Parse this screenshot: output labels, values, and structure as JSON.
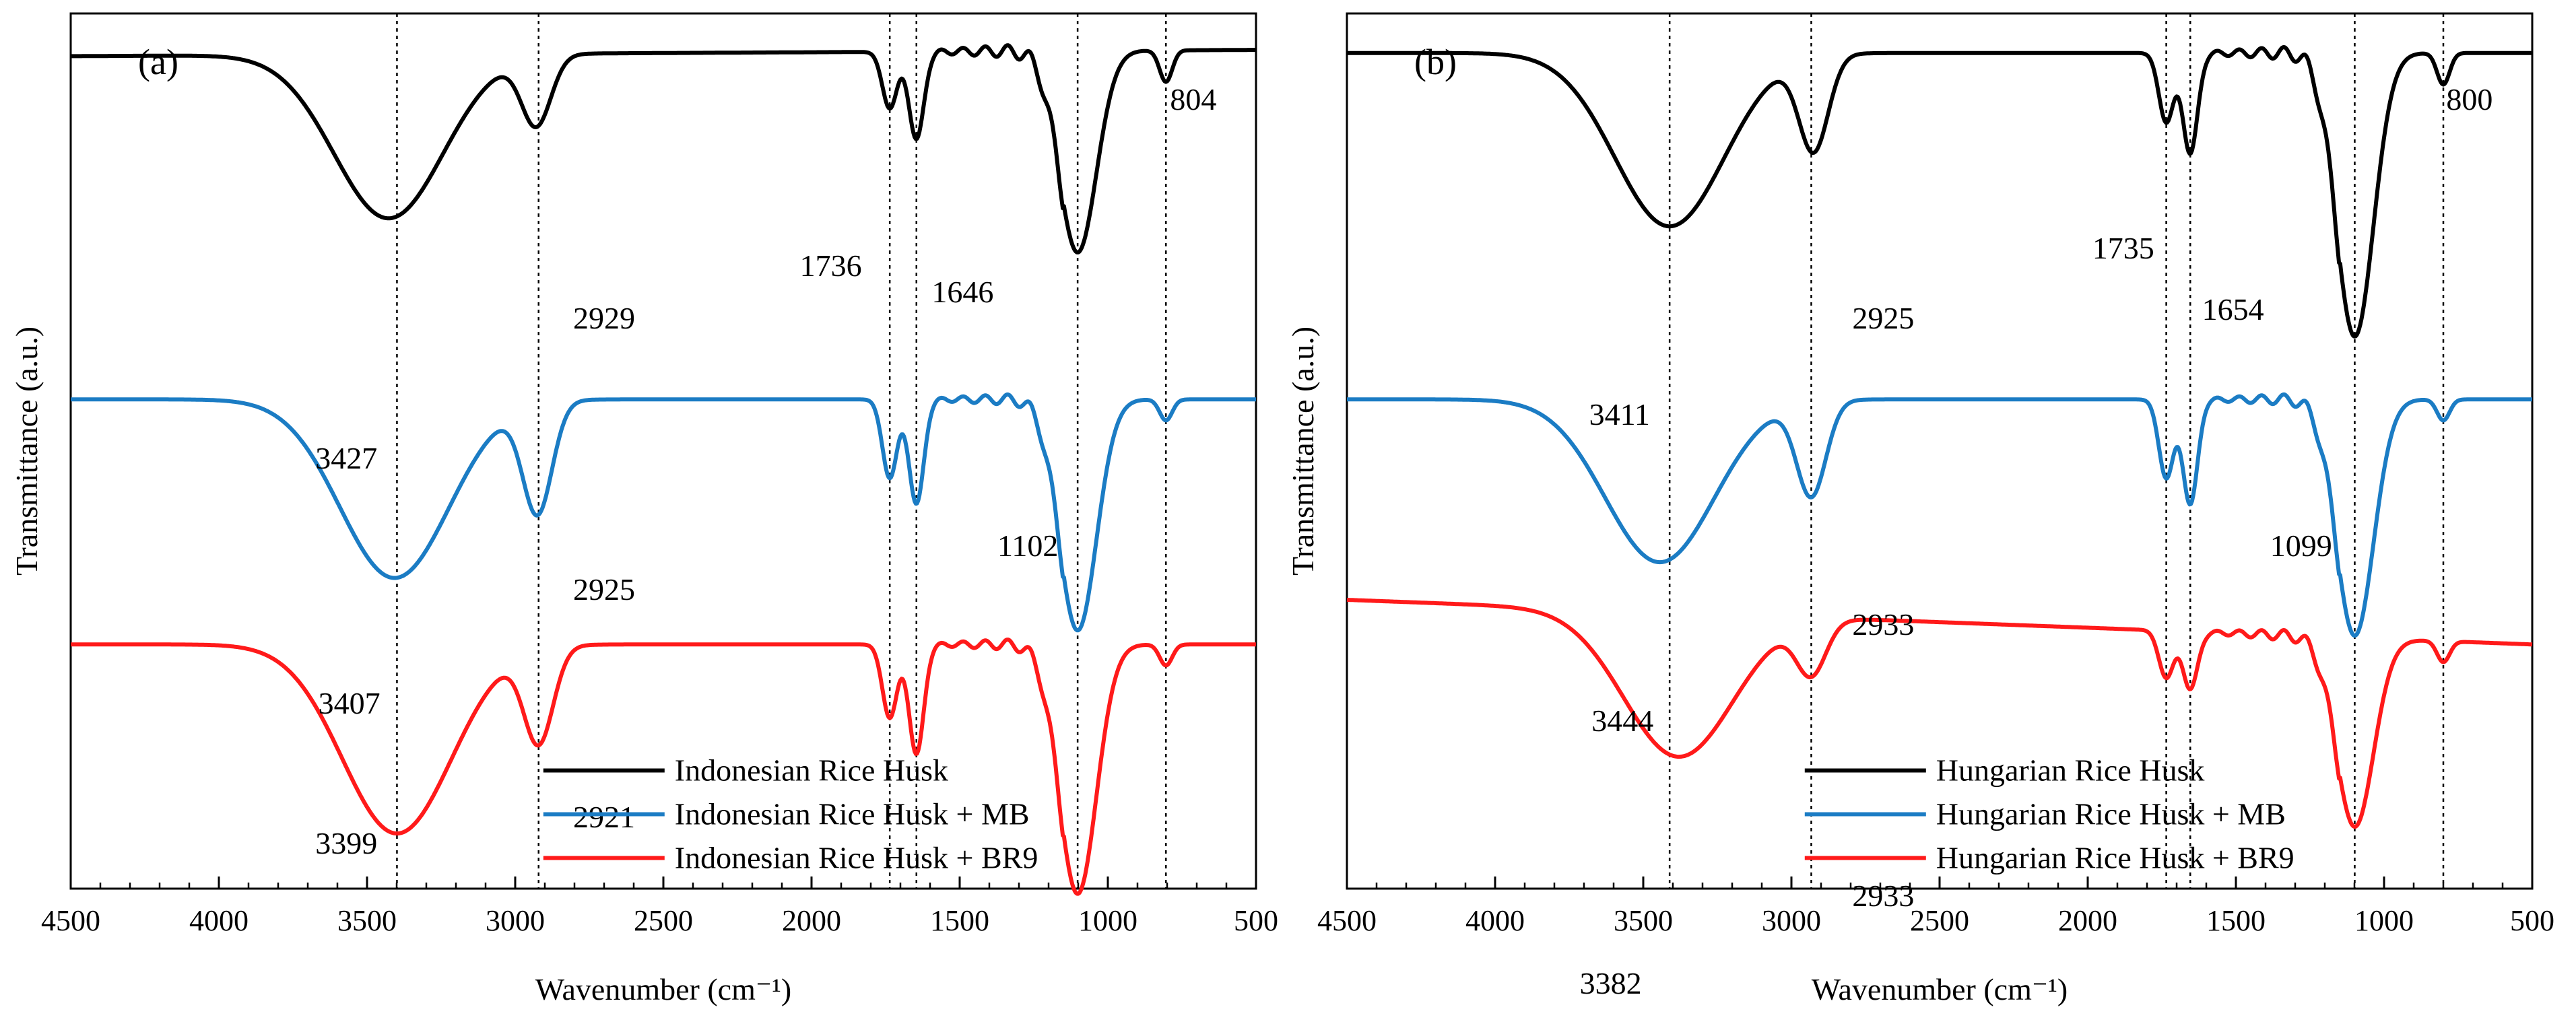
{
  "figure": {
    "description_caption": ""
  },
  "chart_data": [
    {
      "type": "line",
      "panel_label": "(a)",
      "xlabel": "Wavenumber (cm⁻¹)",
      "ylabel": "Transmittance (a.u.)",
      "xlim": [
        4500,
        500
      ],
      "xticks": [
        4500,
        4000,
        3500,
        3000,
        2500,
        2000,
        1500,
        1000,
        500
      ],
      "yticks_shown": false,
      "reference_lines": [
        3399,
        2921,
        1736,
        1646,
        1102,
        804
      ],
      "series": [
        {
          "name": "Indonesian Rice Husk",
          "color": "#000000",
          "offset": 0.0,
          "baseline_left": 0.92,
          "baseline_right": 0.94,
          "bands": [
            {
              "center": 3427,
              "depth": 0.52
            },
            {
              "center": 2929,
              "depth": 0.22
            },
            {
              "center": 1736,
              "depth": 0.18
            },
            {
              "center": 1646,
              "depth": 0.28
            },
            {
              "center": 1102,
              "depth": 0.64
            },
            {
              "center": 804,
              "depth": 0.1
            }
          ]
        },
        {
          "name": "Indonesian Rice Husk + MB",
          "color": "#1b7cc4",
          "offset": 0.0,
          "baseline_left": 0.93,
          "baseline_right": 0.93,
          "bands": [
            {
              "center": 3407,
              "depth": 0.68
            },
            {
              "center": 2925,
              "depth": 0.42
            },
            {
              "center": 1736,
              "depth": 0.3
            },
            {
              "center": 1646,
              "depth": 0.4
            },
            {
              "center": 1102,
              "depth": 0.88
            },
            {
              "center": 804,
              "depth": 0.08
            }
          ]
        },
        {
          "name": "Indonesian Rice Husk + BR9",
          "color": "#ff1a1a",
          "offset": 0.0,
          "baseline_left": 0.93,
          "baseline_right": 0.93,
          "bands": [
            {
              "center": 3399,
              "depth": 0.72
            },
            {
              "center": 2921,
              "depth": 0.36
            },
            {
              "center": 1736,
              "depth": 0.28
            },
            {
              "center": 1646,
              "depth": 0.42
            },
            {
              "center": 1102,
              "depth": 0.95
            },
            {
              "center": 804,
              "depth": 0.08
            }
          ]
        }
      ],
      "annotations": [
        "3427",
        "2929",
        "1736",
        "1646",
        "804",
        "1102",
        "3407",
        "2925",
        "2921",
        "3399"
      ],
      "legend": [
        "Indonesian Rice Husk",
        "Indonesian Rice Husk + MB",
        "Indonesian Rice Husk + BR9"
      ]
    },
    {
      "type": "line",
      "panel_label": "(b)",
      "xlabel": "Wavenumber (cm⁻¹)",
      "ylabel": "Transmittance (a.u.)",
      "xlim": [
        4500,
        500
      ],
      "xticks": [
        4500,
        4000,
        3500,
        3000,
        2500,
        2000,
        1500,
        1000,
        500
      ],
      "yticks_shown": false,
      "reference_lines": [
        3411,
        2933,
        1735,
        1654,
        1099,
        800
      ],
      "series": [
        {
          "name": "Hungarian Rice Husk",
          "color": "#000000",
          "offset": 0.0,
          "baseline_left": 0.93,
          "baseline_right": 0.93,
          "bands": [
            {
              "center": 3411,
              "depth": 0.55
            },
            {
              "center": 2925,
              "depth": 0.3
            },
            {
              "center": 1735,
              "depth": 0.22
            },
            {
              "center": 1654,
              "depth": 0.32
            },
            {
              "center": 1099,
              "depth": 0.9
            },
            {
              "center": 800,
              "depth": 0.1
            }
          ]
        },
        {
          "name": "Hungarian Rice Husk + MB",
          "color": "#1b7cc4",
          "offset": 0.0,
          "baseline_left": 0.93,
          "baseline_right": 0.93,
          "bands": [
            {
              "center": 3444,
              "depth": 0.62
            },
            {
              "center": 2933,
              "depth": 0.36
            },
            {
              "center": 1735,
              "depth": 0.3
            },
            {
              "center": 1654,
              "depth": 0.4
            },
            {
              "center": 1099,
              "depth": 0.9
            },
            {
              "center": 800,
              "depth": 0.08
            }
          ]
        },
        {
          "name": "Hungarian Rice Husk + BR9",
          "color": "#ff1a1a",
          "offset": 0.0,
          "baseline_left": 1.1,
          "baseline_right": 0.93,
          "bands": [
            {
              "center": 3382,
              "depth": 0.55
            },
            {
              "center": 2933,
              "depth": 0.2
            },
            {
              "center": 1735,
              "depth": 0.18
            },
            {
              "center": 1654,
              "depth": 0.22
            },
            {
              "center": 1099,
              "depth": 0.72
            },
            {
              "center": 800,
              "depth": 0.08
            }
          ]
        }
      ],
      "annotations": [
        "3411",
        "2925",
        "1735",
        "1654",
        "800",
        "1099",
        "3444",
        "2933",
        "2933",
        "3382"
      ],
      "legend": [
        "Hungarian Rice Husk",
        "Hungarian Rice Husk + MB",
        "Hungarian Rice Husk + BR9"
      ]
    }
  ]
}
